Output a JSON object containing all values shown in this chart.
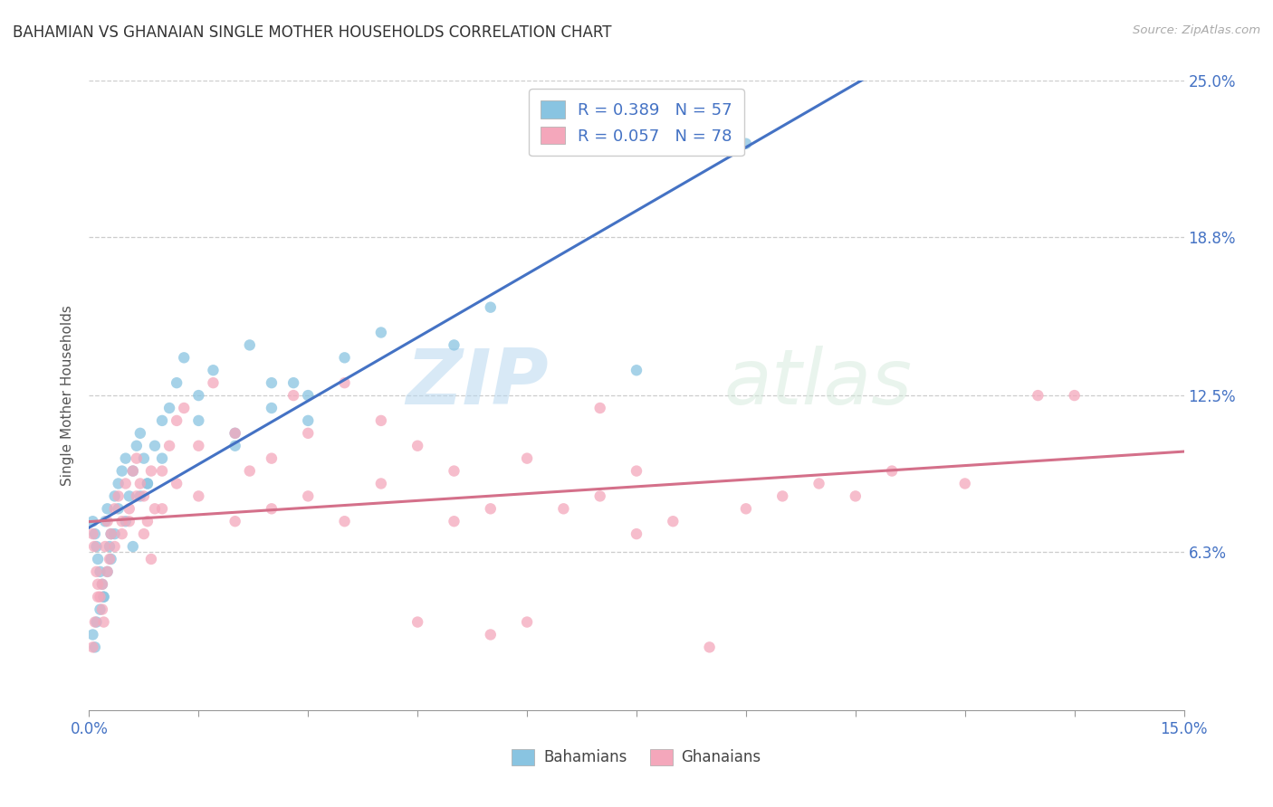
{
  "title": "BAHAMIAN VS GHANAIAN SINGLE MOTHER HOUSEHOLDS CORRELATION CHART",
  "source_text": "Source: ZipAtlas.com",
  "ylabel": "Single Mother Households",
  "ytick_labels": [
    "6.3%",
    "12.5%",
    "18.8%",
    "25.0%"
  ],
  "ytick_values": [
    6.3,
    12.5,
    18.8,
    25.0
  ],
  "xlim": [
    0.0,
    15.0
  ],
  "ylim": [
    0.0,
    25.0
  ],
  "bahamian_color": "#89c4e1",
  "ghanaian_color": "#f4a7bb",
  "trend_blue": "#4472c4",
  "trend_pink": "#d4708a",
  "label_color": "#4472c4",
  "watermark_zip": "ZIP",
  "watermark_atlas": "atlas",
  "bah_x": [
    0.05,
    0.08,
    0.1,
    0.12,
    0.15,
    0.18,
    0.2,
    0.22,
    0.25,
    0.28,
    0.3,
    0.35,
    0.4,
    0.45,
    0.5,
    0.55,
    0.6,
    0.65,
    0.7,
    0.75,
    0.8,
    0.9,
    1.0,
    1.1,
    1.2,
    1.3,
    1.5,
    1.7,
    2.0,
    2.2,
    2.5,
    2.8,
    3.0,
    3.5,
    4.0,
    5.0,
    5.5,
    7.5,
    9.0,
    0.05,
    0.08,
    0.1,
    0.15,
    0.2,
    0.25,
    0.3,
    0.35,
    0.4,
    0.5,
    0.6,
    0.7,
    0.8,
    1.0,
    1.5,
    2.0,
    2.5,
    3.0
  ],
  "bah_y": [
    7.5,
    7.0,
    6.5,
    6.0,
    5.5,
    5.0,
    4.5,
    7.5,
    8.0,
    6.5,
    7.0,
    8.5,
    9.0,
    9.5,
    10.0,
    8.5,
    9.5,
    10.5,
    11.0,
    10.0,
    9.0,
    10.5,
    11.5,
    12.0,
    13.0,
    14.0,
    12.5,
    13.5,
    11.0,
    14.5,
    12.0,
    13.0,
    12.5,
    14.0,
    15.0,
    14.5,
    16.0,
    13.5,
    22.5,
    3.0,
    2.5,
    3.5,
    4.0,
    4.5,
    5.5,
    6.0,
    7.0,
    8.0,
    7.5,
    6.5,
    8.5,
    9.0,
    10.0,
    11.5,
    10.5,
    13.0,
    11.5
  ],
  "gha_x": [
    0.05,
    0.07,
    0.1,
    0.12,
    0.15,
    0.18,
    0.2,
    0.22,
    0.25,
    0.28,
    0.3,
    0.35,
    0.4,
    0.45,
    0.5,
    0.55,
    0.6,
    0.65,
    0.7,
    0.75,
    0.8,
    0.85,
    0.9,
    1.0,
    1.1,
    1.2,
    1.3,
    1.5,
    1.7,
    2.0,
    2.2,
    2.5,
    2.8,
    3.0,
    3.5,
    4.0,
    4.5,
    5.0,
    6.0,
    7.0,
    7.5,
    0.05,
    0.08,
    0.12,
    0.18,
    0.25,
    0.35,
    0.45,
    0.55,
    0.65,
    0.75,
    0.85,
    1.0,
    1.2,
    1.5,
    2.0,
    2.5,
    3.0,
    3.5,
    4.0,
    5.0,
    5.5,
    6.5,
    7.0,
    7.5,
    8.0,
    9.0,
    9.5,
    10.0,
    10.5,
    11.0,
    12.0,
    13.0,
    13.5,
    4.5,
    6.0,
    5.5,
    8.5
  ],
  "gha_y": [
    7.0,
    6.5,
    5.5,
    5.0,
    4.5,
    4.0,
    3.5,
    6.5,
    7.5,
    6.0,
    7.0,
    8.0,
    8.5,
    7.5,
    9.0,
    8.0,
    9.5,
    10.0,
    9.0,
    8.5,
    7.5,
    9.5,
    8.0,
    9.5,
    10.5,
    11.5,
    12.0,
    10.5,
    13.0,
    11.0,
    9.5,
    10.0,
    12.5,
    11.0,
    13.0,
    11.5,
    10.5,
    9.5,
    10.0,
    12.0,
    9.5,
    2.5,
    3.5,
    4.5,
    5.0,
    5.5,
    6.5,
    7.0,
    7.5,
    8.5,
    7.0,
    6.0,
    8.0,
    9.0,
    8.5,
    7.5,
    8.0,
    8.5,
    7.5,
    9.0,
    7.5,
    8.0,
    8.0,
    8.5,
    7.0,
    7.5,
    8.0,
    8.5,
    9.0,
    8.5,
    9.5,
    9.0,
    12.5,
    12.5,
    3.5,
    3.5,
    3.0,
    2.5
  ]
}
